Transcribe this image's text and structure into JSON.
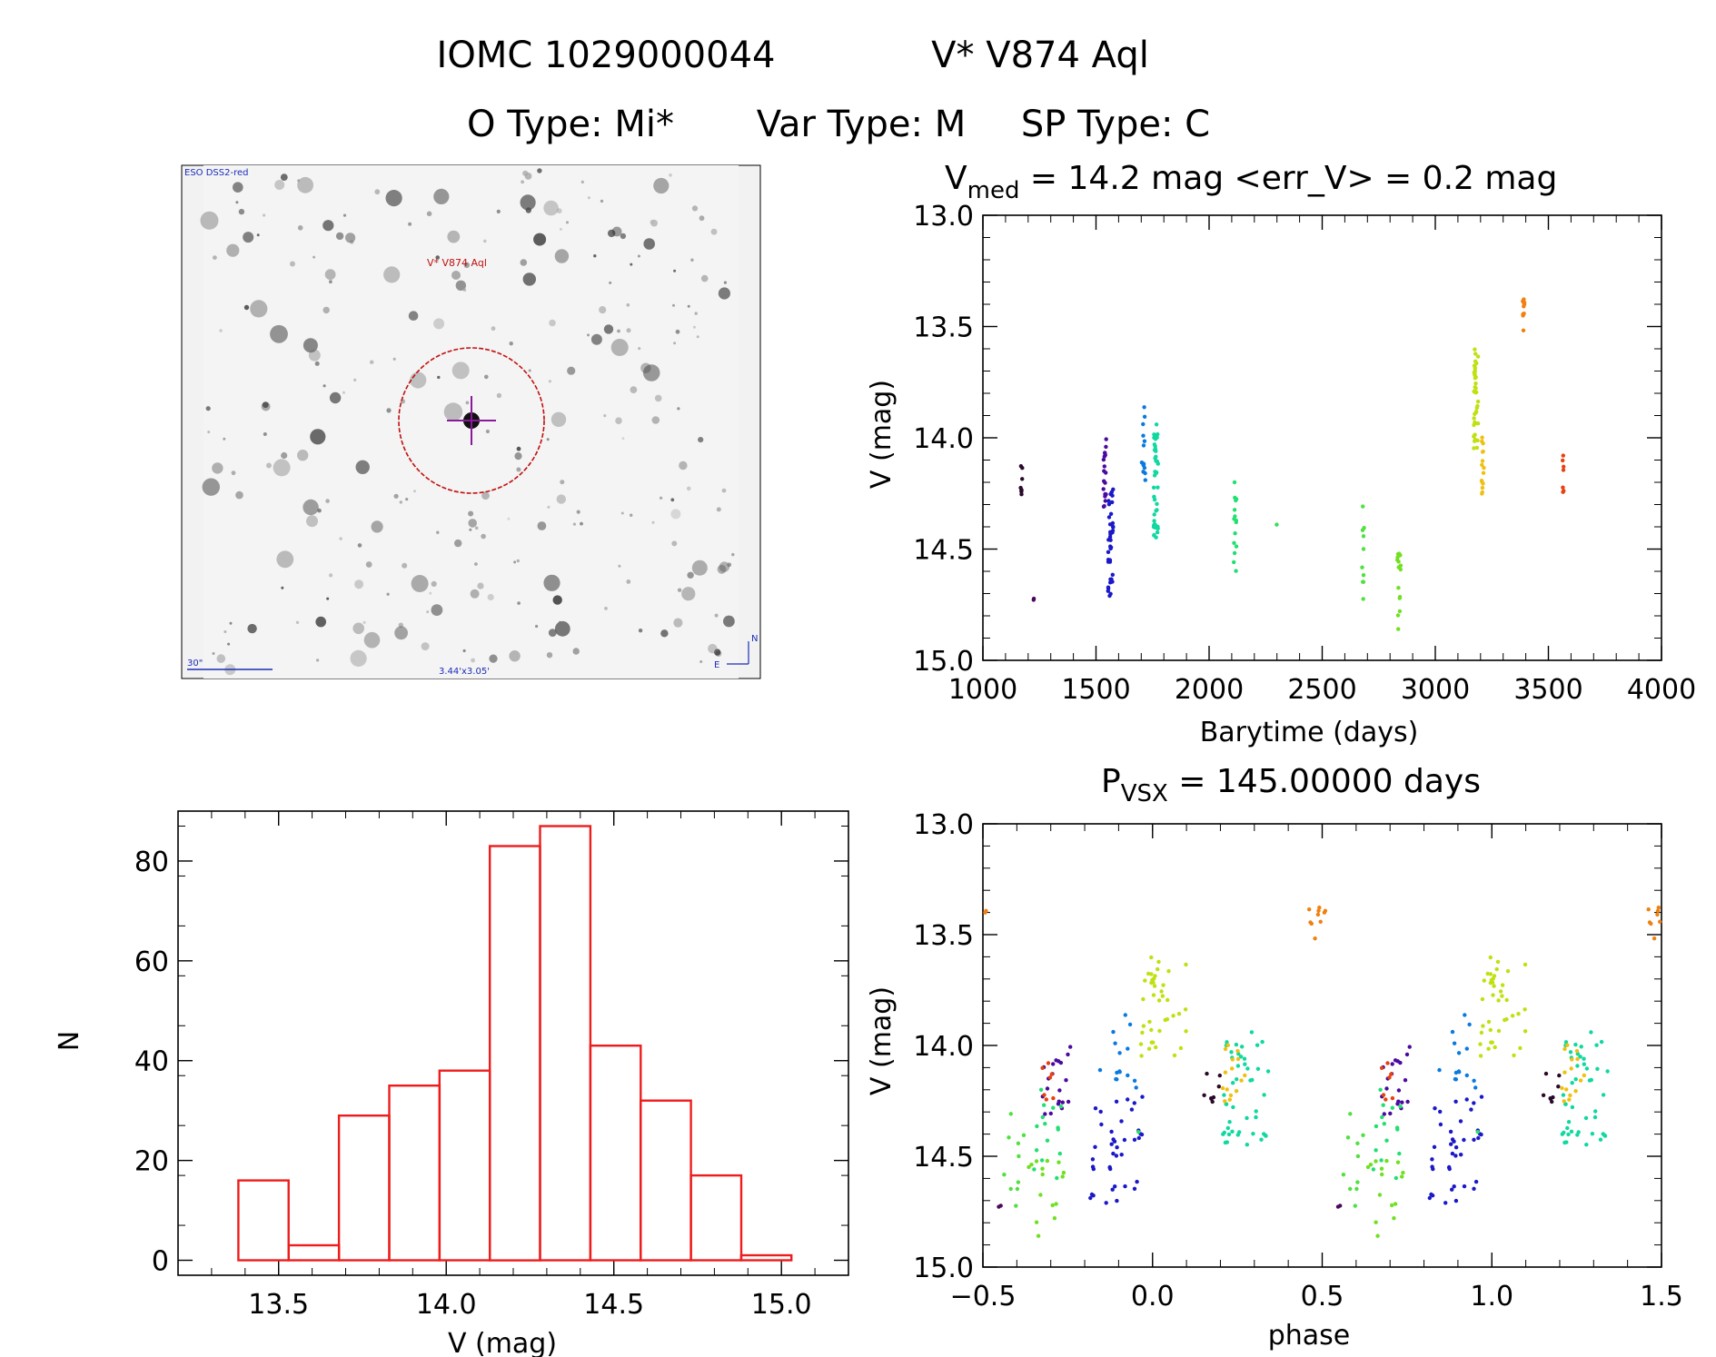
{
  "header": {
    "line1_left": "IOMC 1029000044",
    "line1_right": "V* V874 Aql",
    "line2_otype": "O Type: Mi*",
    "line2_vartype": "Var Type: M",
    "line2_sptype": "SP Type: C"
  },
  "image_panel": {
    "survey_label": "ESO DSS2-red",
    "target_label": "V* V874 Aql",
    "scale_label": "30\"",
    "fov_label": "3.44'x3.05'",
    "north_label": "N",
    "east_label": "E"
  },
  "colors": {
    "histogram": "#ee1c1c",
    "circle": "#c01010",
    "crosshair": "#8a1a9a",
    "scale_bar": "#1c2db8"
  },
  "chart_data": [
    {
      "id": "light_curve",
      "type": "scatter",
      "title_main": "V",
      "title_sub": "med",
      "title_rest": " = 14.2 mag <err_V> = 0.2 mag",
      "xlabel": "Barytime (days)",
      "ylabel": "V (mag)",
      "xlim": [
        1000,
        4000
      ],
      "ylim": [
        15.0,
        13.0
      ],
      "xticks": [
        "1000",
        "1500",
        "2000",
        "2500",
        "3000",
        "3500",
        "4000"
      ],
      "yticks": [
        "13.0",
        "13.5",
        "14.0",
        "14.5",
        "15.0"
      ],
      "clusters": [
        {
          "x": 1170,
          "xspread": 4,
          "ymin": 14.1,
          "ymax": 14.28,
          "n": 8,
          "color": "#2a0a2a"
        },
        {
          "x": 1225,
          "xspread": 2,
          "ymin": 14.72,
          "ymax": 14.74,
          "n": 2,
          "color": "#4a0a5a"
        },
        {
          "x": 1540,
          "xspread": 8,
          "ymin": 14.0,
          "ymax": 14.35,
          "n": 20,
          "color": "#4b0a9e"
        },
        {
          "x": 1565,
          "xspread": 12,
          "ymin": 14.2,
          "ymax": 14.72,
          "n": 40,
          "color": "#1a18c8"
        },
        {
          "x": 1710,
          "xspread": 8,
          "ymin": 13.85,
          "ymax": 14.2,
          "n": 15,
          "color": "#0a7ae0"
        },
        {
          "x": 1765,
          "xspread": 10,
          "ymin": 13.93,
          "ymax": 14.45,
          "n": 45,
          "color": "#10d8a0"
        },
        {
          "x": 2115,
          "xspread": 6,
          "ymin": 14.2,
          "ymax": 14.6,
          "n": 15,
          "color": "#20e070"
        },
        {
          "x": 2300,
          "xspread": 2,
          "ymin": 14.38,
          "ymax": 14.4,
          "n": 1,
          "color": "#30e060"
        },
        {
          "x": 2680,
          "xspread": 5,
          "ymin": 14.3,
          "ymax": 14.74,
          "n": 10,
          "color": "#50e040"
        },
        {
          "x": 2840,
          "xspread": 8,
          "ymin": 14.52,
          "ymax": 14.87,
          "n": 15,
          "color": "#70e020"
        },
        {
          "x": 3180,
          "xspread": 10,
          "ymin": 13.6,
          "ymax": 14.05,
          "n": 40,
          "color": "#c0e010"
        },
        {
          "x": 3210,
          "xspread": 6,
          "ymin": 13.95,
          "ymax": 14.27,
          "n": 15,
          "color": "#f0c010"
        },
        {
          "x": 3390,
          "xspread": 4,
          "ymin": 13.37,
          "ymax": 13.52,
          "n": 10,
          "color": "#f08010"
        },
        {
          "x": 3565,
          "xspread": 3,
          "ymin": 14.07,
          "ymax": 14.25,
          "n": 7,
          "color": "#e84010"
        }
      ]
    },
    {
      "id": "histogram",
      "type": "bar",
      "xlabel": "V (mag)",
      "ylabel": "N",
      "xlim": [
        13.2,
        15.2
      ],
      "ylim": [
        -3,
        90
      ],
      "xticks": [
        "13.5",
        "14.0",
        "14.5",
        "15.0"
      ],
      "yticks": [
        "0",
        "20",
        "40",
        "60",
        "80"
      ],
      "bin_edges": [
        13.38,
        13.53,
        13.68,
        13.83,
        13.98,
        14.13,
        14.28,
        14.43,
        14.58,
        14.73,
        14.88,
        15.03
      ],
      "counts": [
        16,
        3,
        29,
        35,
        38,
        83,
        87,
        43,
        32,
        17,
        1
      ]
    },
    {
      "id": "phase_curve",
      "type": "scatter",
      "title_main": "P",
      "title_sub": "VSX",
      "title_rest": " = 145.00000 days",
      "period": 145.0,
      "xlabel": "phase",
      "ylabel": "V (mag)",
      "xlim": [
        -0.5,
        1.5
      ],
      "ylim": [
        15.0,
        13.0
      ],
      "xticks": [
        "−0.5",
        "0.0",
        "0.5",
        "1.0",
        "1.5"
      ],
      "yticks": [
        "13.0",
        "13.5",
        "14.0",
        "14.5",
        "15.0"
      ]
    }
  ]
}
